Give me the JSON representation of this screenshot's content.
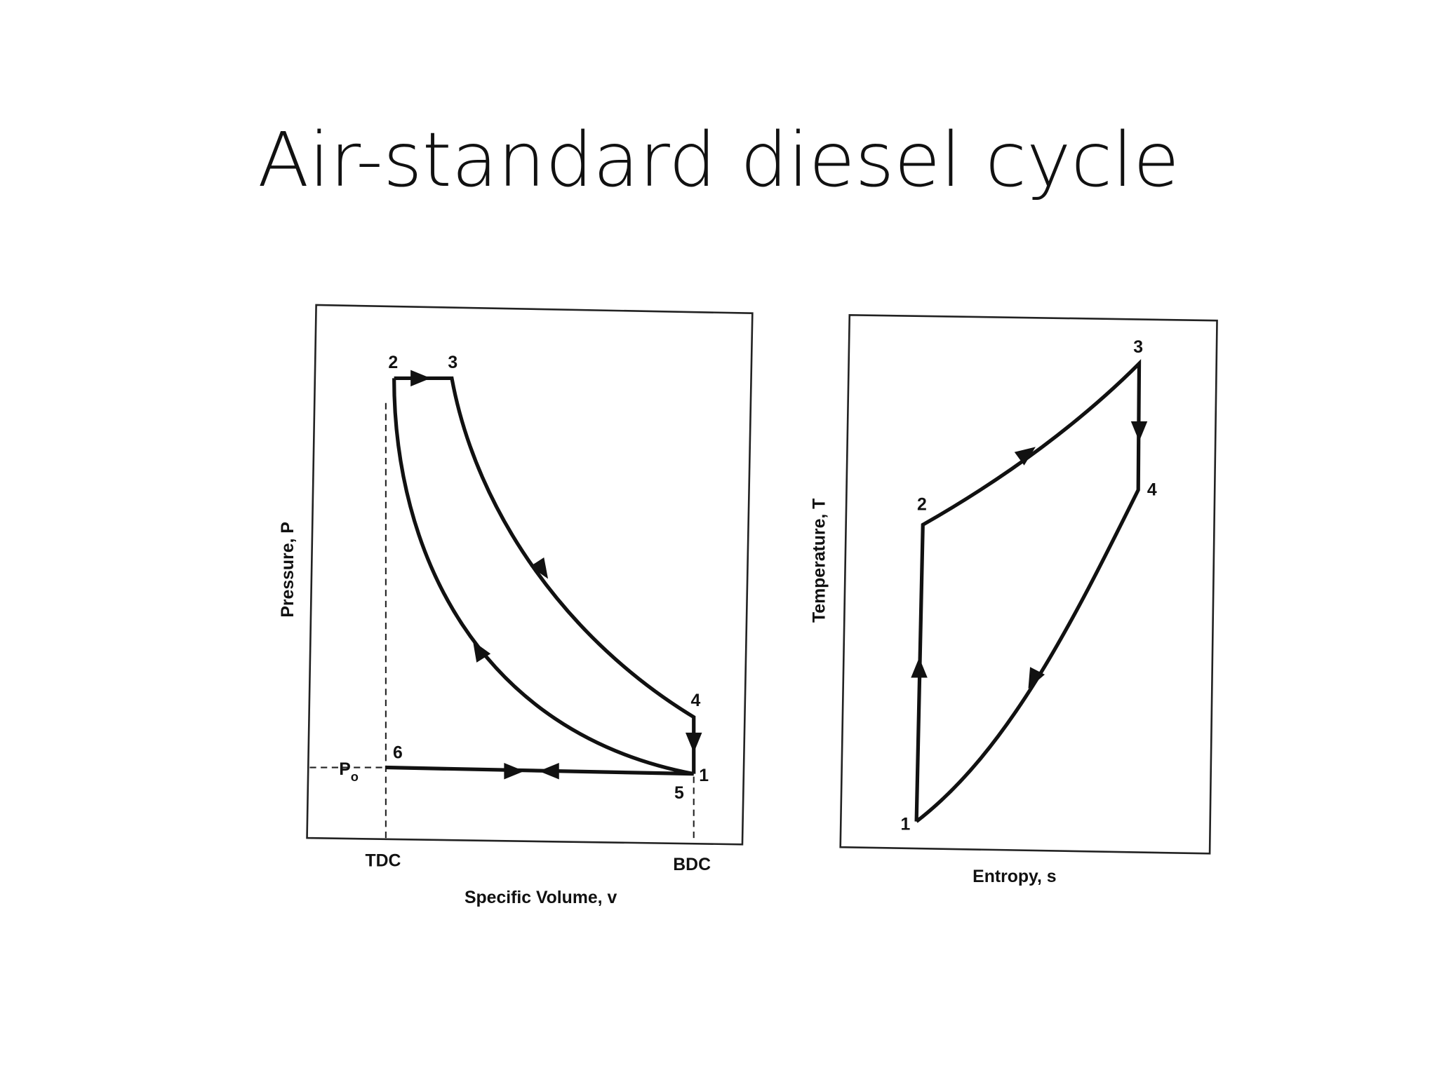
{
  "title": "Air-standard diesel cycle",
  "pv_diagram": {
    "y_axis_label": "Pressure, P",
    "x_axis_label": "Specific Volume, v",
    "x_markers": [
      "TDC",
      "BDC"
    ],
    "reference_pressure": {
      "main": "P",
      "subscript": "o"
    },
    "points": [
      "1",
      "2",
      "3",
      "4",
      "5",
      "6"
    ]
  },
  "ts_diagram": {
    "y_axis_label": "Temperature, T",
    "x_axis_label": "Entropy, s",
    "points": [
      "1",
      "2",
      "3",
      "4"
    ]
  }
}
